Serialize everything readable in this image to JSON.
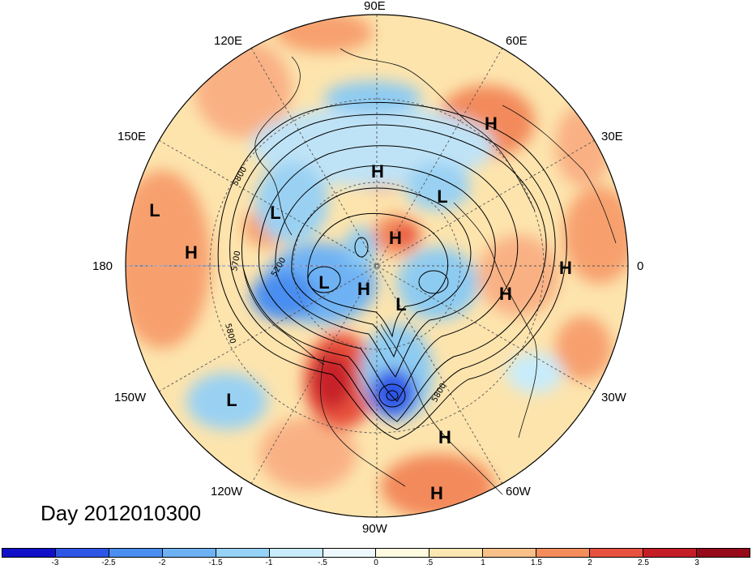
{
  "title": "Day 2012010300",
  "map": {
    "projection": "north polar stereographic",
    "longitude_labels": [
      {
        "id": "90e",
        "text": "90E"
      },
      {
        "id": "60e",
        "text": "60E"
      },
      {
        "id": "30e",
        "text": "30E"
      },
      {
        "id": "0",
        "text": "0"
      },
      {
        "id": "30w",
        "text": "30W"
      },
      {
        "id": "60w",
        "text": "60W"
      },
      {
        "id": "90w",
        "text": "90W"
      },
      {
        "id": "120w",
        "text": "120W"
      },
      {
        "id": "150w",
        "text": "150W"
      },
      {
        "id": "180",
        "text": "180"
      },
      {
        "id": "150e",
        "text": "150E"
      },
      {
        "id": "120e",
        "text": "120E"
      }
    ],
    "contour_labels": [
      "5800",
      "5700",
      "5200",
      "5800",
      "5800"
    ],
    "pressure_centers": [
      {
        "type": "H"
      },
      {
        "type": "H"
      },
      {
        "type": "L"
      },
      {
        "type": "L"
      },
      {
        "type": "H"
      },
      {
        "type": "L"
      },
      {
        "type": "H"
      },
      {
        "type": "L"
      },
      {
        "type": "H"
      },
      {
        "type": "H"
      },
      {
        "type": "L"
      },
      {
        "type": "H"
      },
      {
        "type": "L"
      },
      {
        "type": "H"
      },
      {
        "type": "H"
      }
    ]
  },
  "colorbar": {
    "ticks": [
      "-3",
      "-2.5",
      "-2",
      "-1.5",
      "-1",
      "-.5",
      "0",
      ".5",
      "1",
      "1.5",
      "2",
      "2.5",
      "3"
    ],
    "colors": [
      "#1010c8",
      "#2e56e6",
      "#4a8ef0",
      "#6eb2f4",
      "#96d2f8",
      "#c8ecfb",
      "#eef9fd",
      "#fffbe0",
      "#fde7b0",
      "#f9c088",
      "#f38d5c",
      "#e8513e",
      "#c41d26",
      "#950b1a"
    ]
  },
  "legend": {
    "units": ""
  }
}
